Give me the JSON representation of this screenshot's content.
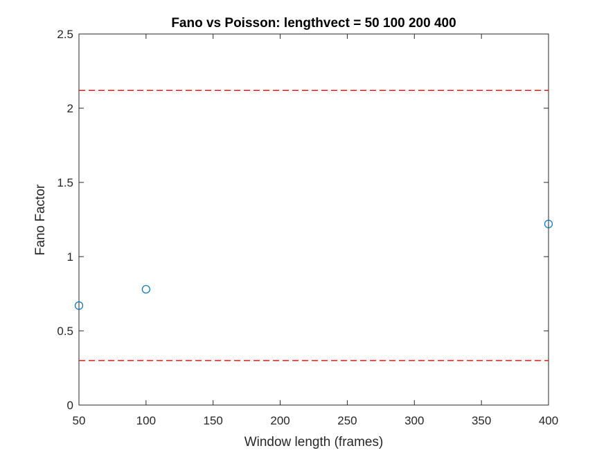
{
  "chart_data": {
    "type": "scatter",
    "title": "Fano vs Poisson: lengthvect = 50  100  200  400",
    "xlabel": "Window length (frames)",
    "ylabel": "Fano Factor",
    "xlim": [
      50,
      400
    ],
    "ylim": [
      0,
      2.5
    ],
    "xticks": [
      50,
      100,
      150,
      200,
      250,
      300,
      350,
      400
    ],
    "xtick_labels": [
      "50",
      "100",
      "150",
      "200",
      "250",
      "300",
      "350",
      "400"
    ],
    "yticks": [
      0,
      0.5,
      1,
      1.5,
      2,
      2.5
    ],
    "ytick_labels": [
      "0",
      "0.5",
      "1",
      "1.5",
      "2",
      "2.5"
    ],
    "grid": false,
    "series": [
      {
        "marker": "open-circle",
        "color": "#0072BD",
        "x": [
          50,
          100,
          400
        ],
        "y": [
          0.67,
          0.78,
          1.22
        ]
      }
    ],
    "reference_lines": [
      {
        "style": "dashed",
        "color": "#FF0000",
        "y": 2.12
      },
      {
        "style": "dashed",
        "color": "#FF0000",
        "y": 0.3
      }
    ]
  }
}
